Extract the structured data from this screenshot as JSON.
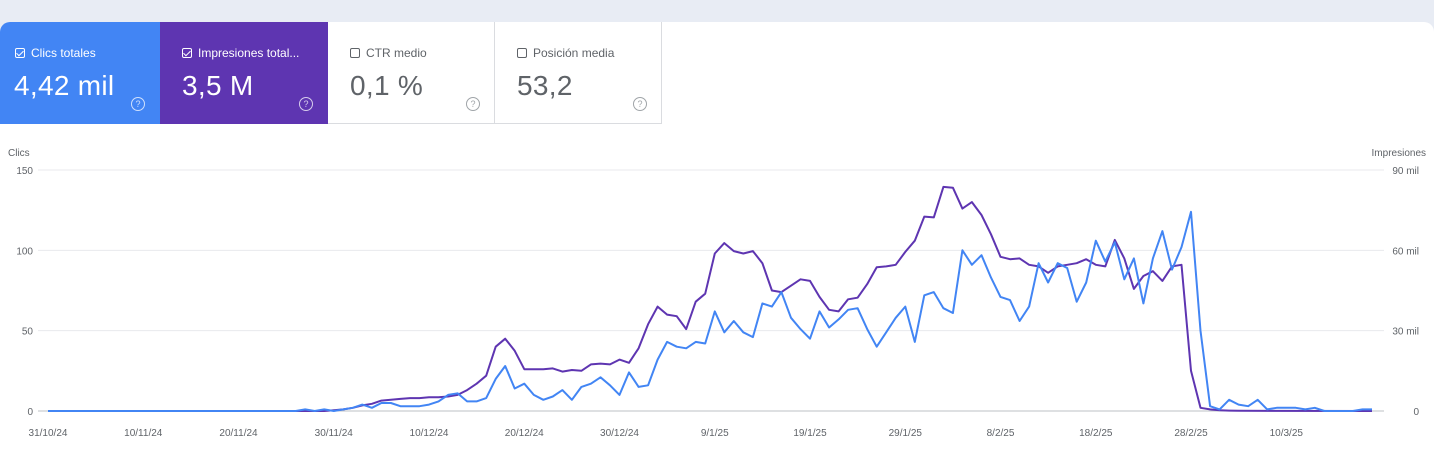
{
  "metrics": [
    {
      "label": "Clics totales",
      "value": "4,42 mil",
      "checked": true,
      "color": "#4285f4"
    },
    {
      "label": "Impresiones total...",
      "value": "3,5 M",
      "checked": true,
      "color": "#5e35b1"
    },
    {
      "label": "CTR medio",
      "value": "0,1 %",
      "checked": false
    },
    {
      "label": "Posición media",
      "value": "53,2",
      "checked": false
    }
  ],
  "chart_data": {
    "type": "line",
    "left_axis": {
      "label": "Clics",
      "ticks": [
        "0",
        "50",
        "100",
        "150"
      ],
      "range": [
        0,
        150
      ]
    },
    "right_axis": {
      "label": "Impresiones",
      "ticks": [
        "0",
        "30 mil",
        "60 mil",
        "90 mil"
      ],
      "range": [
        0,
        90000
      ]
    },
    "x_tick_labels": [
      "31/10/24",
      "10/11/24",
      "20/11/24",
      "30/11/24",
      "10/12/24",
      "20/12/24",
      "30/12/24",
      "9/1/25",
      "19/1/25",
      "29/1/25",
      "8/2/25",
      "18/2/25",
      "28/2/25",
      "10/3/25"
    ],
    "x_range": [
      "2024-10-31",
      "2025-03-19"
    ],
    "grid": true,
    "series": [
      {
        "name": "Clics totales",
        "axis": "left",
        "color": "#4285f4",
        "points": [
          [
            "2024-10-31",
            0
          ],
          [
            "2024-11-26",
            0
          ],
          [
            "2024-11-27",
            1
          ],
          [
            "2024-11-28",
            0
          ],
          [
            "2024-11-29",
            1
          ],
          [
            "2024-11-30",
            0
          ],
          [
            "2024-12-01",
            1
          ],
          [
            "2024-12-02",
            2
          ],
          [
            "2024-12-03",
            4
          ],
          [
            "2024-12-04",
            2
          ],
          [
            "2024-12-05",
            5
          ],
          [
            "2024-12-06",
            5
          ],
          [
            "2024-12-07",
            3
          ],
          [
            "2024-12-08",
            3
          ],
          [
            "2024-12-09",
            3
          ],
          [
            "2024-12-10",
            4
          ],
          [
            "2024-12-11",
            6
          ],
          [
            "2024-12-12",
            10
          ],
          [
            "2024-12-13",
            11
          ],
          [
            "2024-12-14",
            6
          ],
          [
            "2024-12-15",
            6
          ],
          [
            "2024-12-16",
            8
          ],
          [
            "2024-12-17",
            20
          ],
          [
            "2024-12-18",
            28
          ],
          [
            "2024-12-19",
            14
          ],
          [
            "2024-12-20",
            17
          ],
          [
            "2024-12-21",
            10
          ],
          [
            "2024-12-22",
            7
          ],
          [
            "2024-12-23",
            9
          ],
          [
            "2024-12-24",
            13
          ],
          [
            "2024-12-25",
            7
          ],
          [
            "2024-12-26",
            15
          ],
          [
            "2024-12-27",
            17
          ],
          [
            "2024-12-28",
            21
          ],
          [
            "2024-12-29",
            16
          ],
          [
            "2024-12-30",
            10
          ],
          [
            "2024-12-31",
            24
          ],
          [
            "2025-01-01",
            15
          ],
          [
            "2025-01-02",
            16
          ],
          [
            "2025-01-03",
            32
          ],
          [
            "2025-01-04",
            43
          ],
          [
            "2025-01-05",
            40
          ],
          [
            "2025-01-06",
            39
          ],
          [
            "2025-01-07",
            43
          ],
          [
            "2025-01-08",
            42
          ],
          [
            "2025-01-09",
            62
          ],
          [
            "2025-01-10",
            49
          ],
          [
            "2025-01-11",
            56
          ],
          [
            "2025-01-12",
            49
          ],
          [
            "2025-01-13",
            46
          ],
          [
            "2025-01-14",
            67
          ],
          [
            "2025-01-15",
            65
          ],
          [
            "2025-01-16",
            74
          ],
          [
            "2025-01-17",
            58
          ],
          [
            "2025-01-18",
            51
          ],
          [
            "2025-01-19",
            45
          ],
          [
            "2025-01-20",
            62
          ],
          [
            "2025-01-21",
            52
          ],
          [
            "2025-01-22",
            57
          ],
          [
            "2025-01-23",
            63
          ],
          [
            "2025-01-24",
            64
          ],
          [
            "2025-01-25",
            51
          ],
          [
            "2025-01-26",
            40
          ],
          [
            "2025-01-27",
            49
          ],
          [
            "2025-01-28",
            58
          ],
          [
            "2025-01-29",
            65
          ],
          [
            "2025-01-30",
            43
          ],
          [
            "2025-01-31",
            72
          ],
          [
            "2025-02-01",
            74
          ],
          [
            "2025-02-02",
            64
          ],
          [
            "2025-02-03",
            61
          ],
          [
            "2025-02-04",
            100
          ],
          [
            "2025-02-05",
            91
          ],
          [
            "2025-02-06",
            97
          ],
          [
            "2025-02-07",
            83
          ],
          [
            "2025-02-08",
            71
          ],
          [
            "2025-02-09",
            69
          ],
          [
            "2025-02-10",
            56
          ],
          [
            "2025-02-11",
            65
          ],
          [
            "2025-02-12",
            92
          ],
          [
            "2025-02-13",
            80
          ],
          [
            "2025-02-14",
            92
          ],
          [
            "2025-02-15",
            89
          ],
          [
            "2025-02-16",
            68
          ],
          [
            "2025-02-17",
            80
          ],
          [
            "2025-02-18",
            106
          ],
          [
            "2025-02-19",
            93
          ],
          [
            "2025-02-20",
            105
          ],
          [
            "2025-02-21",
            82
          ],
          [
            "2025-02-22",
            95
          ],
          [
            "2025-02-23",
            67
          ],
          [
            "2025-02-24",
            95
          ],
          [
            "2025-02-25",
            112
          ],
          [
            "2025-02-26",
            88
          ],
          [
            "2025-02-27",
            102
          ],
          [
            "2025-02-28",
            124
          ],
          [
            "2025-03-01",
            50
          ],
          [
            "2025-03-02",
            3
          ],
          [
            "2025-03-03",
            1
          ],
          [
            "2025-03-04",
            7
          ],
          [
            "2025-03-05",
            4
          ],
          [
            "2025-03-06",
            3
          ],
          [
            "2025-03-07",
            7
          ],
          [
            "2025-03-08",
            1
          ],
          [
            "2025-03-09",
            2
          ],
          [
            "2025-03-10",
            2
          ],
          [
            "2025-03-11",
            2
          ],
          [
            "2025-03-12",
            1
          ],
          [
            "2025-03-13",
            2
          ],
          [
            "2025-03-14",
            0
          ],
          [
            "2025-03-17",
            0
          ],
          [
            "2025-03-18",
            1
          ],
          [
            "2025-03-19",
            1
          ]
        ]
      },
      {
        "name": "Impresiones totales",
        "axis": "right",
        "color": "#5e35b1",
        "points": [
          [
            "2024-10-31",
            0
          ],
          [
            "2024-11-29",
            0
          ],
          [
            "2024-11-30",
            300
          ],
          [
            "2024-12-01",
            600
          ],
          [
            "2024-12-02",
            1200
          ],
          [
            "2024-12-03",
            2100
          ],
          [
            "2024-12-04",
            2700
          ],
          [
            "2024-12-05",
            3900
          ],
          [
            "2024-12-06",
            4200
          ],
          [
            "2024-12-07",
            4500
          ],
          [
            "2024-12-08",
            4800
          ],
          [
            "2024-12-09",
            4800
          ],
          [
            "2024-12-10",
            5100
          ],
          [
            "2024-12-11",
            5100
          ],
          [
            "2024-12-12",
            5400
          ],
          [
            "2024-12-13",
            6000
          ],
          [
            "2024-12-14",
            7800
          ],
          [
            "2024-12-15",
            10200
          ],
          [
            "2024-12-16",
            13200
          ],
          [
            "2024-12-17",
            24000
          ],
          [
            "2024-12-18",
            27000
          ],
          [
            "2024-12-19",
            22500
          ],
          [
            "2024-12-20",
            15600
          ],
          [
            "2024-12-21",
            15600
          ],
          [
            "2024-12-22",
            15600
          ],
          [
            "2024-12-23",
            15900
          ],
          [
            "2024-12-24",
            14700
          ],
          [
            "2024-12-25",
            15300
          ],
          [
            "2024-12-26",
            15000
          ],
          [
            "2024-12-27",
            17400
          ],
          [
            "2024-12-28",
            17700
          ],
          [
            "2024-12-29",
            17400
          ],
          [
            "2024-12-30",
            19200
          ],
          [
            "2024-12-31",
            18000
          ],
          [
            "2025-01-01",
            23400
          ],
          [
            "2025-01-02",
            32400
          ],
          [
            "2025-01-03",
            39000
          ],
          [
            "2025-01-04",
            36000
          ],
          [
            "2025-01-05",
            35400
          ],
          [
            "2025-01-06",
            30600
          ],
          [
            "2025-01-07",
            40800
          ],
          [
            "2025-01-08",
            43800
          ],
          [
            "2025-01-09",
            58800
          ],
          [
            "2025-01-10",
            62700
          ],
          [
            "2025-01-11",
            59700
          ],
          [
            "2025-01-12",
            58800
          ],
          [
            "2025-01-13",
            59700
          ],
          [
            "2025-01-14",
            55200
          ],
          [
            "2025-01-15",
            45000
          ],
          [
            "2025-01-16",
            44400
          ],
          [
            "2025-01-17",
            46800
          ],
          [
            "2025-01-18",
            49200
          ],
          [
            "2025-01-19",
            48600
          ],
          [
            "2025-01-20",
            42600
          ],
          [
            "2025-01-21",
            37800
          ],
          [
            "2025-01-22",
            37200
          ],
          [
            "2025-01-23",
            41700
          ],
          [
            "2025-01-24",
            42300
          ],
          [
            "2025-01-25",
            47400
          ],
          [
            "2025-01-26",
            53700
          ],
          [
            "2025-01-27",
            54000
          ],
          [
            "2025-01-28",
            54600
          ],
          [
            "2025-01-29",
            59400
          ],
          [
            "2025-01-30",
            63600
          ],
          [
            "2025-01-31",
            72600
          ],
          [
            "2025-02-01",
            72300
          ],
          [
            "2025-02-02",
            83700
          ],
          [
            "2025-02-03",
            83400
          ],
          [
            "2025-02-04",
            75600
          ],
          [
            "2025-02-05",
            78000
          ],
          [
            "2025-02-06",
            73200
          ],
          [
            "2025-02-07",
            66000
          ],
          [
            "2025-02-08",
            57600
          ],
          [
            "2025-02-09",
            56700
          ],
          [
            "2025-02-10",
            57000
          ],
          [
            "2025-02-11",
            54600
          ],
          [
            "2025-02-12",
            54000
          ],
          [
            "2025-02-13",
            51600
          ],
          [
            "2025-02-14",
            54000
          ],
          [
            "2025-02-15",
            54600
          ],
          [
            "2025-02-16",
            55200
          ],
          [
            "2025-02-17",
            56700
          ],
          [
            "2025-02-18",
            54600
          ],
          [
            "2025-02-19",
            54000
          ],
          [
            "2025-02-20",
            63900
          ],
          [
            "2025-02-21",
            57000
          ],
          [
            "2025-02-22",
            45600
          ],
          [
            "2025-02-23",
            50400
          ],
          [
            "2025-02-24",
            52200
          ],
          [
            "2025-02-25",
            48600
          ],
          [
            "2025-02-26",
            54000
          ],
          [
            "2025-02-27",
            54600
          ],
          [
            "2025-02-28",
            15000
          ],
          [
            "2025-03-01",
            1200
          ],
          [
            "2025-03-02",
            600
          ],
          [
            "2025-03-03",
            300
          ],
          [
            "2025-03-04",
            150
          ],
          [
            "2025-03-05",
            60
          ],
          [
            "2025-03-19",
            0
          ]
        ]
      }
    ]
  }
}
